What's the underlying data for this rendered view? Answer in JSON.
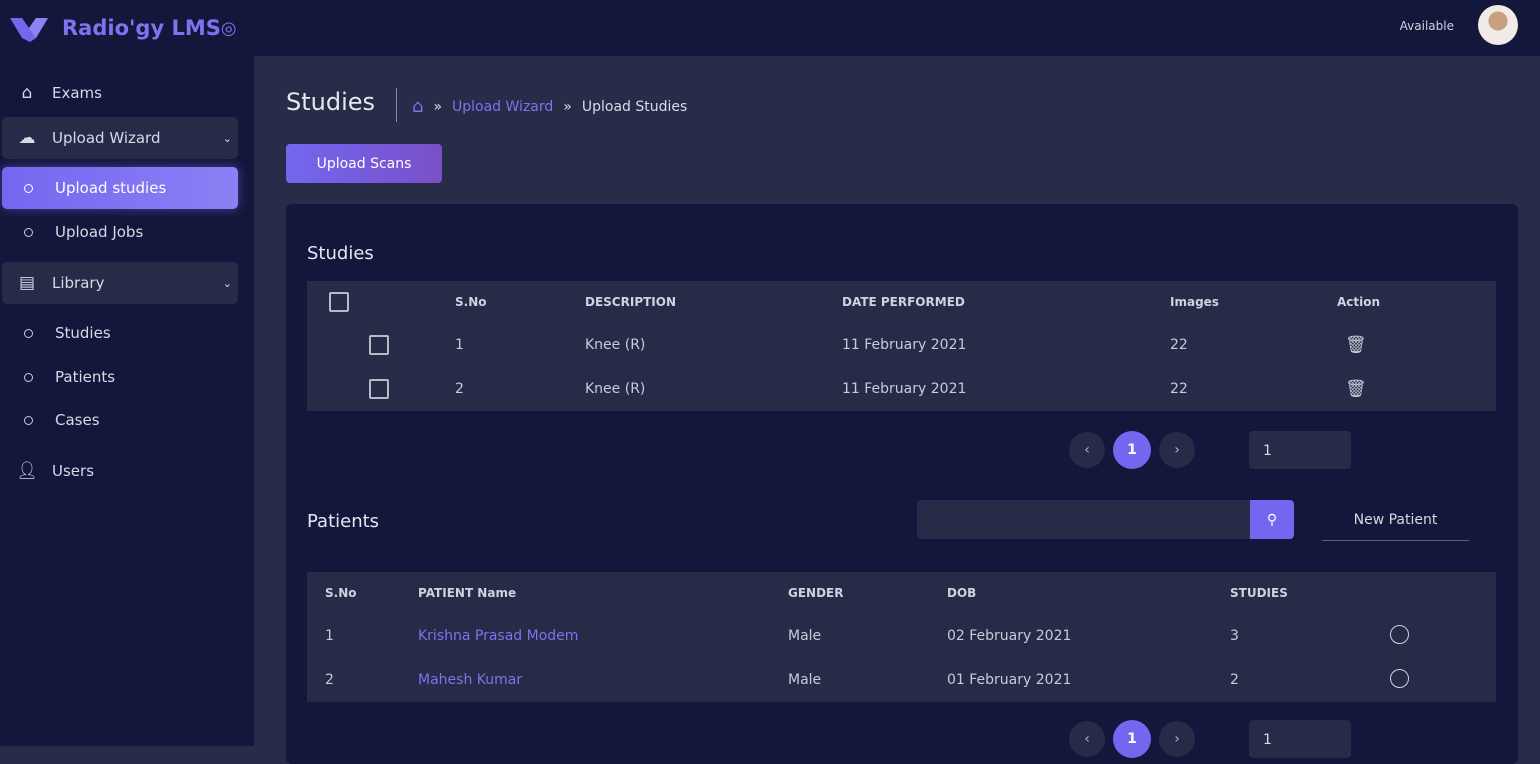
{
  "app": {
    "title": "Radio'gy LMS",
    "status": "Available"
  },
  "sidebar": {
    "items": [
      {
        "label": "Exams",
        "icon": "home-icon"
      },
      {
        "label": "Upload Wizard",
        "icon": "upload-cloud-icon"
      },
      {
        "label": "Upload studies"
      },
      {
        "label": "Upload Jobs"
      },
      {
        "label": "Library",
        "icon": "archive-icon"
      },
      {
        "label": "Studies"
      },
      {
        "label": "Patients"
      },
      {
        "label": "Cases"
      },
      {
        "label": "Users",
        "icon": "user-icon"
      }
    ]
  },
  "header": {
    "title": "Studies",
    "breadcrumb": [
      "Upload Wizard",
      "Upload Studies"
    ],
    "upload_button": "Upload Scans"
  },
  "studies": {
    "title": "Studies",
    "columns": [
      "S.No",
      "DESCRIPTION",
      "DATE PERFORMED",
      "Images",
      "Action"
    ],
    "rows": [
      {
        "sno": "1",
        "description": "Knee (R)",
        "date": "11 February 2021",
        "images": "22"
      },
      {
        "sno": "2",
        "description": "Knee (R)",
        "date": "11 February 2021",
        "images": "22"
      }
    ],
    "page": "1",
    "page_input": "1"
  },
  "patients": {
    "title": "Patients",
    "search_placeholder": "",
    "new_button": "New Patient",
    "columns": [
      "S.No",
      "PATIENT Name",
      "GENDER",
      "DOB",
      "STUDIES"
    ],
    "rows": [
      {
        "sno": "1",
        "name": "Krishna Prasad Modem",
        "gender": "Male",
        "dob": "02 February 2021",
        "studies": "3"
      },
      {
        "sno": "2",
        "name": "Mahesh Kumar",
        "gender": "Male",
        "dob": "01 February 2021",
        "studies": "2"
      }
    ],
    "page": "1",
    "page_input": "1"
  },
  "colors": {
    "accent": "#7367f0",
    "sidebar": "#13173b",
    "background": "#272c49"
  }
}
